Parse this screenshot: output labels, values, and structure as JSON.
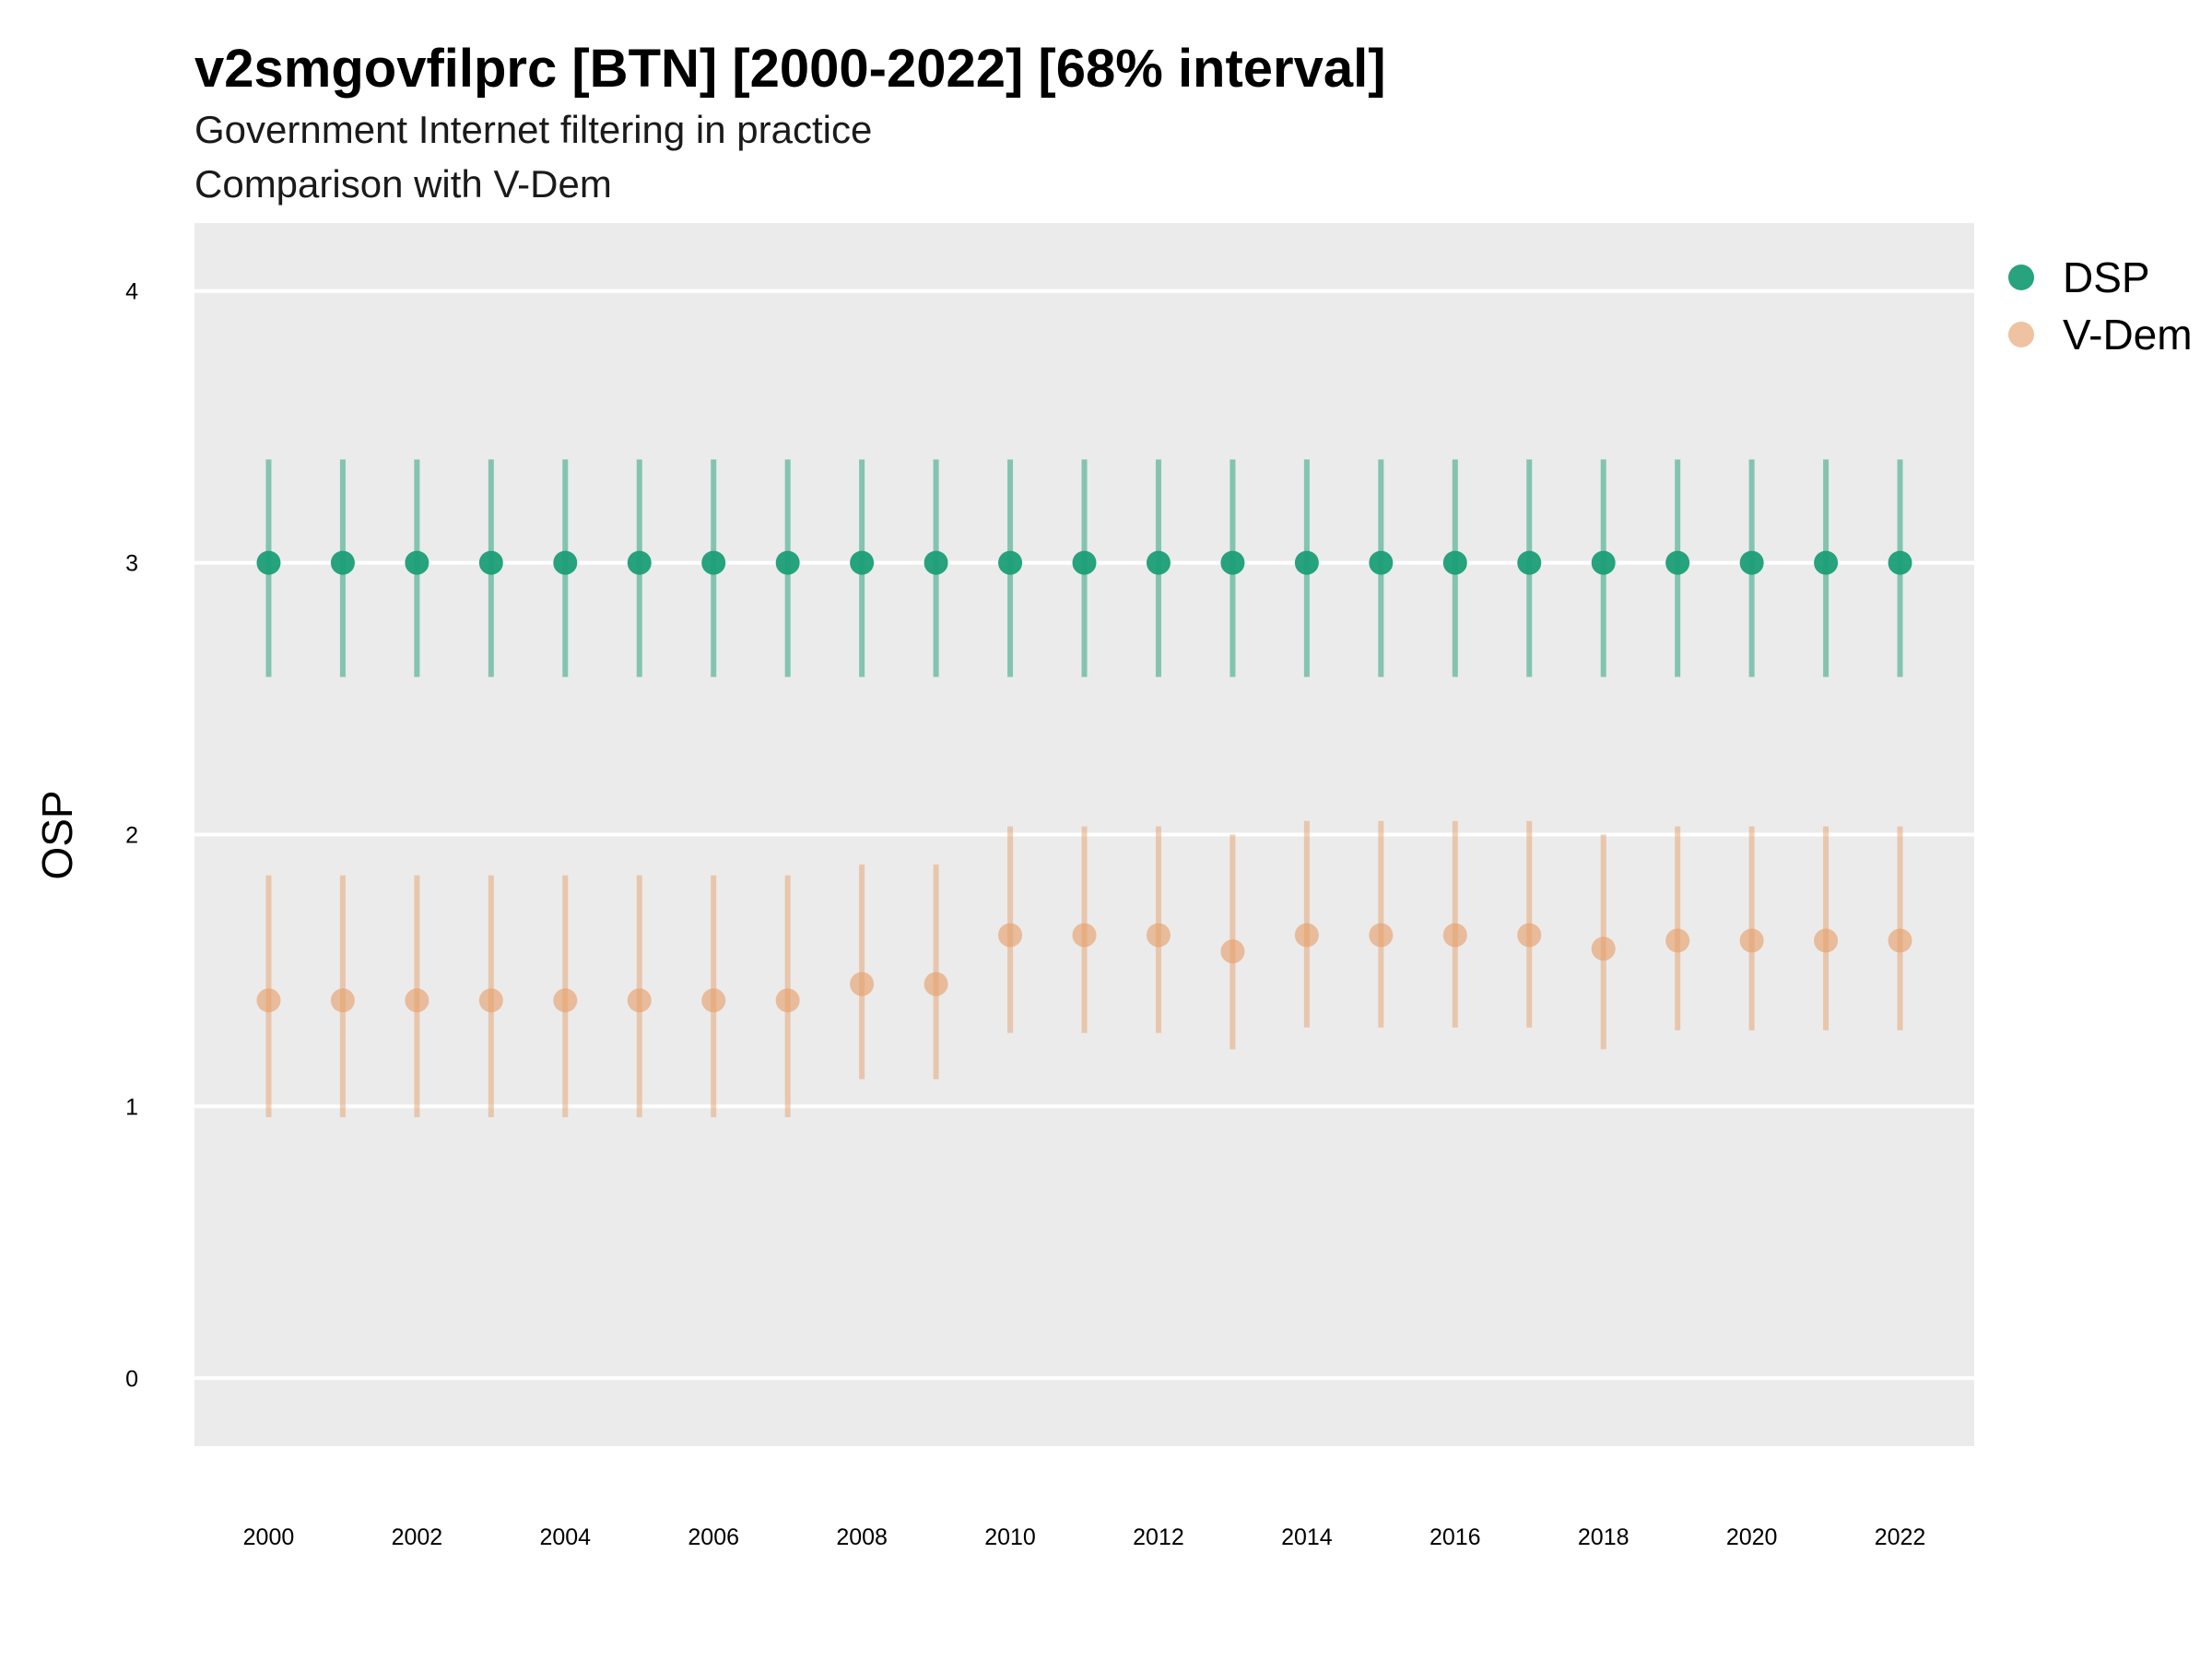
{
  "chart_data": {
    "type": "scatter",
    "title": "v2smgovfilprc [BTN] [2000-2022] [68% interval]",
    "subtitle": "Government Internet filtering in practice",
    "caption": "Comparison with V-Dem",
    "xlabel": "",
    "ylabel": "OSP",
    "xlim": [
      1999,
      2023
    ],
    "ylim": [
      -0.25,
      4.25
    ],
    "xticks": [
      "2000",
      "2002",
      "2004",
      "2006",
      "2008",
      "2010",
      "2012",
      "2014",
      "2016",
      "2018",
      "2020",
      "2022"
    ],
    "yticks": [
      "0",
      "1",
      "2",
      "3",
      "4"
    ],
    "grid": true,
    "legend_position": "right",
    "x": [
      2000,
      2001,
      2002,
      2003,
      2004,
      2005,
      2006,
      2007,
      2008,
      2009,
      2010,
      2011,
      2012,
      2013,
      2014,
      2015,
      2016,
      2017,
      2018,
      2019,
      2020,
      2021,
      2022
    ],
    "series": [
      {
        "name": "DSP",
        "color": "#1b9e77",
        "values": [
          3,
          3,
          3,
          3,
          3,
          3,
          3,
          3,
          3,
          3,
          3,
          3,
          3,
          3,
          3,
          3,
          3,
          3,
          3,
          3,
          3,
          3,
          3
        ],
        "lower": [
          2.58,
          2.58,
          2.58,
          2.58,
          2.58,
          2.58,
          2.58,
          2.58,
          2.58,
          2.58,
          2.58,
          2.58,
          2.58,
          2.58,
          2.58,
          2.58,
          2.58,
          2.58,
          2.58,
          2.58,
          2.58,
          2.58,
          2.58
        ],
        "upper": [
          3.38,
          3.38,
          3.38,
          3.38,
          3.38,
          3.38,
          3.38,
          3.38,
          3.38,
          3.38,
          3.38,
          3.38,
          3.38,
          3.38,
          3.38,
          3.38,
          3.38,
          3.38,
          3.38,
          3.38,
          3.38,
          3.38,
          3.38
        ]
      },
      {
        "name": "V-Dem",
        "color": "#e6a26e",
        "values": [
          1.39,
          1.39,
          1.39,
          1.39,
          1.39,
          1.39,
          1.39,
          1.39,
          1.45,
          1.45,
          1.63,
          1.63,
          1.63,
          1.57,
          1.63,
          1.63,
          1.63,
          1.63,
          1.58,
          1.61,
          1.61,
          1.61,
          1.61
        ],
        "lower": [
          0.96,
          0.96,
          0.96,
          0.96,
          0.96,
          0.96,
          0.96,
          0.96,
          1.1,
          1.1,
          1.27,
          1.27,
          1.27,
          1.21,
          1.29,
          1.29,
          1.29,
          1.29,
          1.21,
          1.28,
          1.28,
          1.28,
          1.28
        ],
        "upper": [
          1.85,
          1.85,
          1.85,
          1.85,
          1.85,
          1.85,
          1.85,
          1.85,
          1.89,
          1.89,
          2.03,
          2.03,
          2.03,
          2.0,
          2.05,
          2.05,
          2.05,
          2.05,
          2.0,
          2.03,
          2.03,
          2.03,
          2.03
        ]
      }
    ]
  }
}
